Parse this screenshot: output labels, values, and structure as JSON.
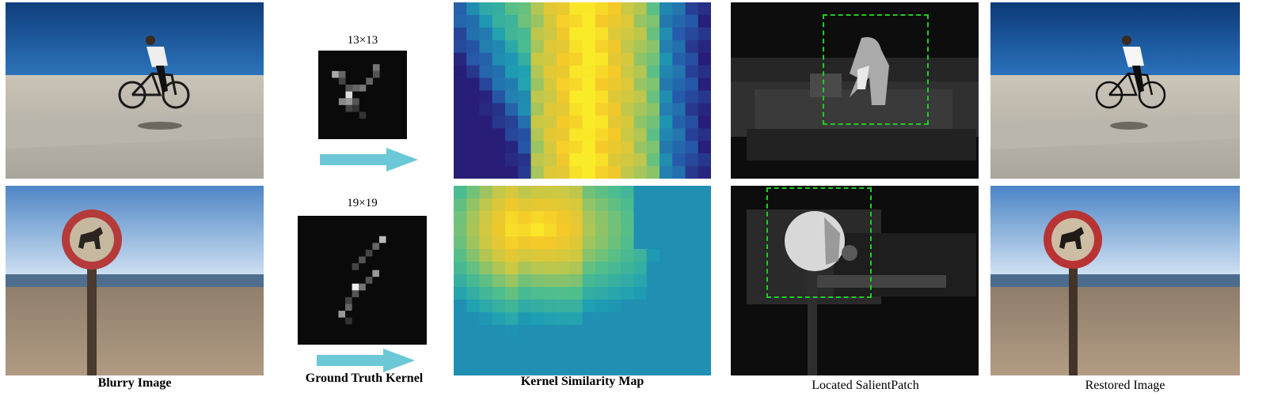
{
  "captions": {
    "blurry": "Blurry Image",
    "kernel": "Ground Truth Kernel",
    "similarity": "Kernel Similarity Map",
    "salient": "Located SalientPatch",
    "restored": "Restored Image"
  },
  "kernels": {
    "top_size": "13×13",
    "bottom_size": "19×19"
  },
  "colors": {
    "arrow": "#6cc8d6",
    "dashed_box": "#22cc22",
    "sky_top": "#1c5aa6",
    "sky_bottom": "#f3e6cc"
  }
}
